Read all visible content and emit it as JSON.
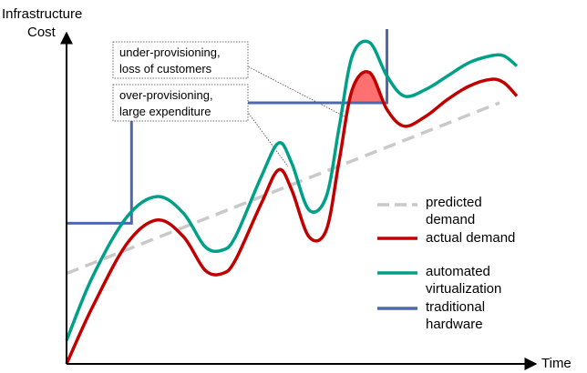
{
  "chart_data": {
    "type": "line",
    "ylabel": [
      "Infrastructure",
      "Cost"
    ],
    "xlabel": "Time",
    "x_range": [
      0,
      100
    ],
    "y_range": [
      0,
      100
    ],
    "grid": false,
    "legend_position": "right",
    "series": [
      {
        "name": "predicted demand",
        "legend_lines": [
          "predicted",
          "demand"
        ],
        "style": "dashed",
        "color": "#c9c9c9",
        "x": [
          0,
          100
        ],
        "y": [
          27,
          78
        ]
      },
      {
        "name": "actual demand",
        "legend_lines": [
          "actual demand"
        ],
        "style": "solid",
        "color": "#c00000",
        "x": [
          0,
          6,
          14,
          21,
          27,
          32,
          36,
          39,
          45,
          49,
          52,
          56,
          60,
          63,
          66,
          70,
          74,
          78,
          83,
          88,
          93,
          98,
          101,
          104
        ],
        "y": [
          0,
          17,
          36,
          43,
          38,
          28,
          27,
          31,
          48,
          58,
          52,
          38,
          40,
          61,
          82,
          87,
          76,
          71,
          74,
          79,
          83,
          85,
          84,
          80
        ]
      },
      {
        "name": "automated virtualization",
        "legend_lines": [
          "automated",
          "virtualization"
        ],
        "style": "solid",
        "color": "#00a088",
        "x": [
          0,
          6,
          14,
          21,
          27,
          32,
          36,
          39,
          45,
          49,
          52,
          56,
          60,
          63,
          66,
          70,
          74,
          78,
          83,
          88,
          93,
          98,
          101,
          104
        ],
        "y": [
          7,
          26,
          44,
          50,
          45,
          35,
          34,
          38,
          56,
          66,
          60,
          46,
          50,
          71,
          92,
          96,
          86,
          80,
          82,
          86,
          90,
          92,
          92,
          89
        ]
      },
      {
        "name": "traditional hardware",
        "legend_lines": [
          "traditional",
          "hardware"
        ],
        "style": "step",
        "color": "#4f67b0",
        "x": [
          0,
          15,
          15,
          74,
          74
        ],
        "y": [
          42,
          42,
          78,
          78,
          100
        ]
      }
    ],
    "shaded_region": {
      "label": "under-provisioning gap",
      "color": "#ff7070",
      "between": [
        "actual demand",
        "traditional hardware"
      ]
    },
    "annotations": [
      {
        "lines": [
          "under-provisioning,",
          "loss of customers"
        ]
      },
      {
        "lines": [
          "over-provisioning,",
          "large expenditure"
        ]
      }
    ]
  }
}
